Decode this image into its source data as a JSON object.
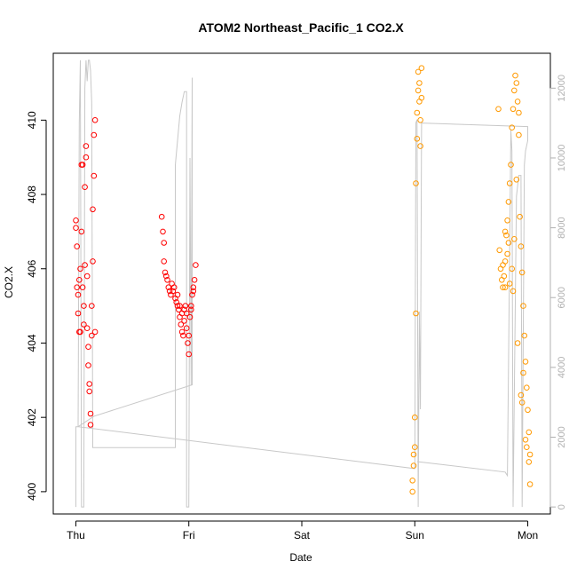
{
  "chart_data": {
    "type": "scatter",
    "title": "ATOM2 Northeast_Pacific_1 CO2.X",
    "xlabel": "Date",
    "ylabel": "CO2.X",
    "x_axis": {
      "unit": "day",
      "ticks": [
        {
          "value": 0,
          "label": "Thu"
        },
        {
          "value": 1,
          "label": "Fri"
        },
        {
          "value": 2,
          "label": "Sat"
        },
        {
          "value": 3,
          "label": "Sun"
        },
        {
          "value": 4,
          "label": "Mon"
        }
      ],
      "range": [
        -0.2,
        4.2
      ]
    },
    "y_axis_left": {
      "range": [
        399.4,
        411.8
      ],
      "ticks": [
        400,
        402,
        404,
        406,
        408,
        410
      ]
    },
    "y_axis_right": {
      "range": [
        -200,
        13000
      ],
      "ticks": [
        0,
        2000,
        4000,
        6000,
        8000,
        10000,
        12000
      ],
      "color": "#b0b0b0"
    },
    "colors": {
      "series_red": "#ff0000",
      "series_orange": "#ff9900",
      "secondary_line": "#c8c8c8"
    },
    "series": [
      {
        "color": "red",
        "points": [
          [
            0.0,
            407.3
          ],
          [
            0.0,
            407.1
          ],
          [
            0.01,
            406.6
          ],
          [
            0.01,
            405.5
          ],
          [
            0.02,
            405.3
          ],
          [
            0.02,
            404.8
          ],
          [
            0.03,
            404.3
          ],
          [
            0.03,
            405.7
          ],
          [
            0.04,
            406.0
          ],
          [
            0.04,
            404.3
          ],
          [
            0.05,
            407.0
          ],
          [
            0.05,
            408.8
          ],
          [
            0.06,
            408.8
          ],
          [
            0.06,
            405.5
          ],
          [
            0.07,
            405.0
          ],
          [
            0.07,
            404.5
          ],
          [
            0.08,
            406.1
          ],
          [
            0.08,
            408.2
          ],
          [
            0.09,
            409.0
          ],
          [
            0.09,
            409.3
          ],
          [
            0.1,
            405.8
          ],
          [
            0.1,
            404.4
          ],
          [
            0.11,
            403.9
          ],
          [
            0.11,
            403.4
          ],
          [
            0.12,
            402.9
          ],
          [
            0.12,
            402.7
          ],
          [
            0.13,
            402.1
          ],
          [
            0.13,
            401.8
          ],
          [
            0.14,
            404.2
          ],
          [
            0.14,
            405.0
          ],
          [
            0.15,
            406.2
          ],
          [
            0.15,
            407.6
          ],
          [
            0.16,
            408.5
          ],
          [
            0.16,
            409.6
          ],
          [
            0.17,
            410.0
          ],
          [
            0.17,
            404.3
          ],
          [
            0.76,
            407.4
          ],
          [
            0.77,
            407.0
          ],
          [
            0.78,
            406.7
          ],
          [
            0.78,
            406.2
          ],
          [
            0.79,
            405.9
          ],
          [
            0.8,
            405.8
          ],
          [
            0.81,
            405.7
          ],
          [
            0.82,
            405.5
          ],
          [
            0.83,
            405.4
          ],
          [
            0.84,
            405.3
          ],
          [
            0.85,
            405.6
          ],
          [
            0.86,
            405.4
          ],
          [
            0.87,
            405.5
          ],
          [
            0.88,
            405.2
          ],
          [
            0.89,
            405.1
          ],
          [
            0.9,
            405.0
          ],
          [
            0.91,
            404.9
          ],
          [
            0.92,
            404.7
          ],
          [
            0.93,
            404.5
          ],
          [
            0.94,
            404.3
          ],
          [
            0.95,
            404.2
          ],
          [
            0.96,
            404.9
          ],
          [
            0.97,
            405.0
          ],
          [
            0.98,
            404.4
          ],
          [
            0.99,
            404.0
          ],
          [
            1.0,
            403.7
          ],
          [
            1.01,
            404.7
          ],
          [
            1.02,
            404.9
          ],
          [
            1.03,
            405.3
          ],
          [
            1.04,
            405.5
          ],
          [
            1.05,
            405.7
          ],
          [
            1.06,
            406.1
          ],
          [
            0.9,
            405.3
          ],
          [
            0.92,
            405.0
          ],
          [
            0.94,
            404.8
          ],
          [
            0.96,
            404.6
          ],
          [
            0.98,
            404.8
          ],
          [
            1.0,
            404.2
          ],
          [
            1.02,
            405.0
          ],
          [
            1.04,
            405.4
          ]
        ]
      },
      {
        "color": "orange",
        "points": [
          [
            2.98,
            400.0
          ],
          [
            2.98,
            400.3
          ],
          [
            2.99,
            400.7
          ],
          [
            2.99,
            401.0
          ],
          [
            3.0,
            401.2
          ],
          [
            3.0,
            402.0
          ],
          [
            3.01,
            404.8
          ],
          [
            3.01,
            408.3
          ],
          [
            3.02,
            409.5
          ],
          [
            3.02,
            410.2
          ],
          [
            3.03,
            410.8
          ],
          [
            3.03,
            411.3
          ],
          [
            3.04,
            411.0
          ],
          [
            3.04,
            410.5
          ],
          [
            3.05,
            410.0
          ],
          [
            3.05,
            409.3
          ],
          [
            3.06,
            411.4
          ],
          [
            3.06,
            410.6
          ],
          [
            3.74,
            410.3
          ],
          [
            3.75,
            406.5
          ],
          [
            3.76,
            406.0
          ],
          [
            3.77,
            405.7
          ],
          [
            3.78,
            405.5
          ],
          [
            3.79,
            405.8
          ],
          [
            3.8,
            406.2
          ],
          [
            3.81,
            406.9
          ],
          [
            3.82,
            407.3
          ],
          [
            3.83,
            407.8
          ],
          [
            3.84,
            408.3
          ],
          [
            3.85,
            408.8
          ],
          [
            3.86,
            409.8
          ],
          [
            3.87,
            410.3
          ],
          [
            3.88,
            410.8
          ],
          [
            3.89,
            411.2
          ],
          [
            3.9,
            411.0
          ],
          [
            3.91,
            410.5
          ],
          [
            3.92,
            410.2
          ],
          [
            3.93,
            407.4
          ],
          [
            3.94,
            406.6
          ],
          [
            3.95,
            405.9
          ],
          [
            3.96,
            405.0
          ],
          [
            3.97,
            404.2
          ],
          [
            3.98,
            403.5
          ],
          [
            3.99,
            402.8
          ],
          [
            4.0,
            402.2
          ],
          [
            4.01,
            401.6
          ],
          [
            4.02,
            401.0
          ],
          [
            4.02,
            400.2
          ],
          [
            3.8,
            407.0
          ],
          [
            3.82,
            406.4
          ],
          [
            3.84,
            405.6
          ],
          [
            3.86,
            406.0
          ],
          [
            3.88,
            406.8
          ],
          [
            3.9,
            408.4
          ],
          [
            3.92,
            409.6
          ],
          [
            3.94,
            402.6
          ],
          [
            3.96,
            403.2
          ],
          [
            3.98,
            401.4
          ],
          [
            3.78,
            406.1
          ],
          [
            3.8,
            405.5
          ],
          [
            3.83,
            406.7
          ],
          [
            3.87,
            405.4
          ],
          [
            3.91,
            404.0
          ],
          [
            3.95,
            402.4
          ],
          [
            3.99,
            401.2
          ],
          [
            4.01,
            400.8
          ]
        ]
      }
    ],
    "secondary_line": {
      "axis": "right",
      "points": [
        [
          0.0,
          0
        ],
        [
          0.0,
          2300
        ],
        [
          0.02,
          2300
        ],
        [
          0.03,
          11000
        ],
        [
          0.04,
          12800
        ],
        [
          0.05,
          0
        ],
        [
          0.07,
          0
        ],
        [
          0.08,
          12000
        ],
        [
          0.09,
          12800
        ],
        [
          0.1,
          12200
        ],
        [
          0.11,
          12800
        ],
        [
          0.12,
          12800
        ],
        [
          0.13,
          12500
        ],
        [
          0.14,
          11600
        ],
        [
          0.15,
          1700
        ],
        [
          0.16,
          1700
        ],
        [
          0.88,
          1700
        ],
        [
          0.88,
          9800
        ],
        [
          0.9,
          10500
        ],
        [
          0.92,
          11200
        ],
        [
          0.94,
          11600
        ],
        [
          0.96,
          11900
        ],
        [
          0.98,
          11900
        ],
        [
          0.98,
          0
        ],
        [
          1.0,
          0
        ],
        [
          1.01,
          10000
        ],
        [
          1.02,
          3500
        ],
        [
          1.03,
          12300
        ],
        [
          1.03,
          3500
        ],
        [
          0.16,
          2600
        ],
        [
          0.02,
          2300
        ],
        [
          3.0,
          1100
        ],
        [
          3.01,
          11000
        ],
        [
          3.02,
          11100
        ],
        [
          3.03,
          0
        ],
        [
          3.04,
          5600
        ],
        [
          3.05,
          2800
        ],
        [
          3.06,
          11000
        ],
        [
          4.0,
          10900
        ],
        [
          4.0,
          10500
        ],
        [
          3.98,
          10200
        ],
        [
          3.97,
          9800
        ],
        [
          3.95,
          0
        ],
        [
          3.94,
          9500
        ],
        [
          3.92,
          9500
        ],
        [
          3.9,
          8900
        ],
        [
          3.87,
          0
        ],
        [
          3.86,
          10200
        ],
        [
          3.85,
          10800
        ],
        [
          3.82,
          900
        ],
        [
          3.8,
          1000
        ],
        [
          3.02,
          1300
        ]
      ]
    },
    "grid": false,
    "legend": "none"
  }
}
